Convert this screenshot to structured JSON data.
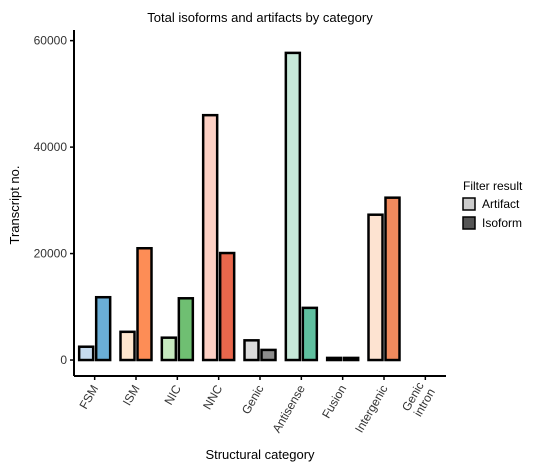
{
  "chart_data": {
    "type": "bar",
    "title": "Total isoforms and artifacts by category",
    "xlabel": "Structural category",
    "ylabel": "Transcript no.",
    "ylim": [
      -3000,
      62000
    ],
    "yticks": [
      0,
      20000,
      40000,
      60000
    ],
    "ytick_labels": [
      "0",
      "20000",
      "40000",
      "60000"
    ],
    "categories": [
      "FSM",
      "ISM",
      "NIC",
      "NNC",
      "Genic",
      "Antisense",
      "Fusion",
      "Intergenic",
      "Genic intron"
    ],
    "category_labels": [
      [
        "FSM"
      ],
      [
        "ISM"
      ],
      [
        "NIC"
      ],
      [
        "NNC"
      ],
      [
        "Genic"
      ],
      [
        "Antisense"
      ],
      [
        "Fusion"
      ],
      [
        "Intergenic"
      ],
      [
        "Genic",
        "intron"
      ]
    ],
    "series": [
      {
        "name": "Artifact",
        "values": [
          2500,
          5300,
          4200,
          46000,
          3700,
          57700,
          400,
          27300,
          0
        ],
        "colors": [
          "#c6dbef",
          "#fee6ce",
          "#c7e9c0",
          "#fdd0c4",
          "#dcdcdc",
          "#c7e9d9",
          "#555555",
          "#fde3d1",
          "#555555"
        ]
      },
      {
        "name": "Isoform",
        "values": [
          11800,
          21000,
          11600,
          20100,
          1900,
          9800,
          400,
          30500,
          0
        ],
        "colors": [
          "#6aaed6",
          "#fd8d56",
          "#6fbf72",
          "#e8674c",
          "#8c8c8c",
          "#5fbf9f",
          "#333333",
          "#f08a5d",
          "#333333"
        ]
      }
    ],
    "legend": {
      "title": "Filter result",
      "placement": "right",
      "items": [
        {
          "label": "Artifact",
          "color": "#cccccc"
        },
        {
          "label": "Isoform",
          "color": "#555555"
        }
      ]
    },
    "grid": false
  }
}
